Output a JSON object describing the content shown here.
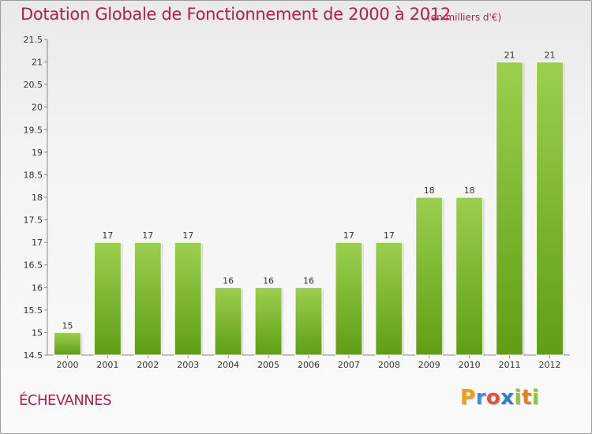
{
  "title": "Dotation Globale de Fonctionnement de 2000 à 2012",
  "subtitle": "(en milliers d'€)",
  "commune": "ÉCHEVANNES",
  "logo": {
    "letters": [
      "P",
      "r",
      "o",
      "x",
      "i",
      "t",
      "i"
    ],
    "colors": [
      "#f39c12",
      "#3a8fd6",
      "#e74c3c",
      "#2e7dd1",
      "#8cc63f",
      "#e67e22",
      "#8cc63f"
    ]
  },
  "colors": {
    "bar_light": "#9ccf4f",
    "bar_dark": "#5f9e14",
    "title": "#b0204e"
  },
  "chart_data": {
    "type": "bar",
    "categories": [
      "2000",
      "2001",
      "2002",
      "2003",
      "2004",
      "2005",
      "2006",
      "2007",
      "2008",
      "2009",
      "2010",
      "2011",
      "2012"
    ],
    "values": [
      15,
      17,
      17,
      17,
      16,
      16,
      16,
      17,
      17,
      18,
      18,
      21,
      21
    ],
    "ylim": [
      14.5,
      21.5
    ],
    "yticks": [
      "14.5",
      "15",
      "15.5",
      "16",
      "16.5",
      "17",
      "17.5",
      "18",
      "18.5",
      "19",
      "19.5",
      "20",
      "20.5",
      "21",
      "21.5"
    ],
    "grid": false
  }
}
